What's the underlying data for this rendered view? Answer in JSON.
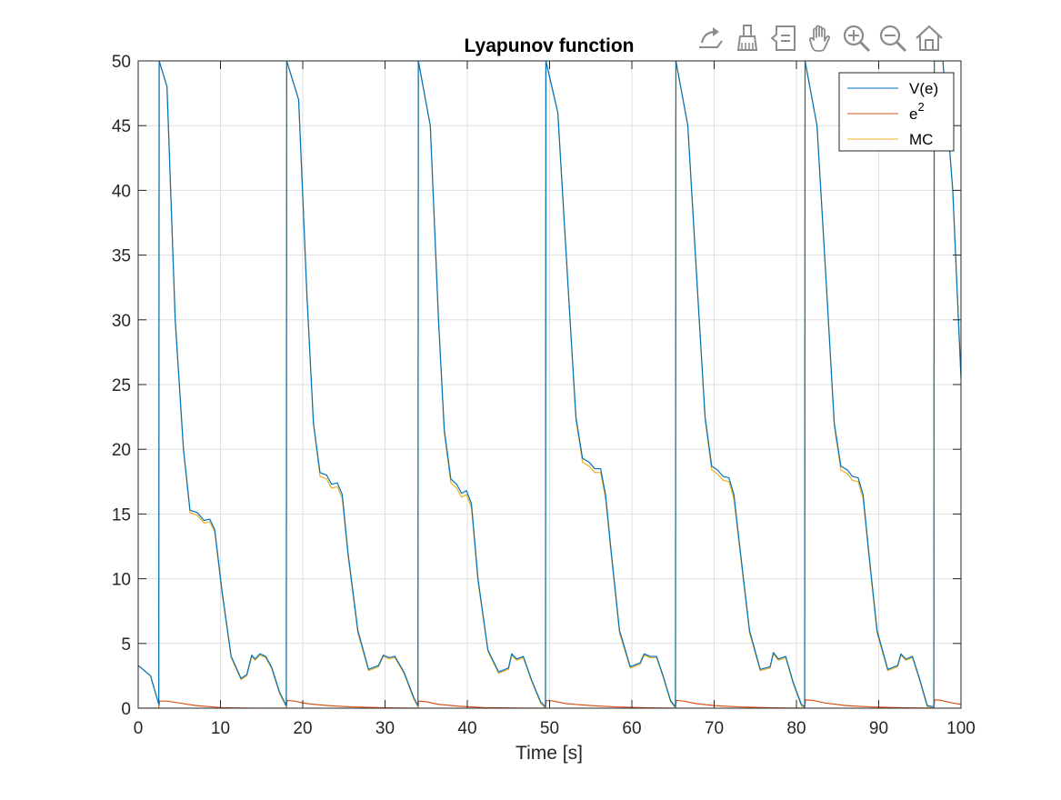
{
  "toolbar": {
    "items": [
      {
        "name": "export-icon"
      },
      {
        "name": "brush-icon"
      },
      {
        "name": "datatip-icon"
      },
      {
        "name": "pan-hand-icon"
      },
      {
        "name": "zoom-in-icon"
      },
      {
        "name": "zoom-out-icon"
      },
      {
        "name": "home-icon"
      }
    ]
  },
  "chart_data": {
    "type": "line",
    "title": "Lyapunov function",
    "xlabel": "Time [s]",
    "ylabel": "",
    "xlim": [
      0,
      100
    ],
    "ylim": [
      0,
      50
    ],
    "grid": true,
    "xticks": [
      0,
      10,
      20,
      30,
      40,
      50,
      60,
      70,
      80,
      90,
      100
    ],
    "yticks": [
      0,
      5,
      10,
      15,
      20,
      25,
      30,
      35,
      40,
      45,
      50
    ],
    "legend": {
      "position": "top-right",
      "entries": [
        {
          "label": "V(e)",
          "color": "#0072BD"
        },
        {
          "label": "e",
          "superscript": "2",
          "color": "#D95319"
        },
        {
          "label": "MC",
          "color": "#EDB120"
        }
      ]
    },
    "series": [
      {
        "name": "V(e)",
        "color": "#0072BD",
        "x": [
          0,
          1.5,
          2.5,
          2.55,
          3.5,
          4.5,
          5.5,
          6.3,
          7.2,
          8,
          8.7,
          9.3,
          10.2,
          11.3,
          12.5,
          13.2,
          13.8,
          14.2,
          14.8,
          15.5,
          16.2,
          17.2,
          18.0,
          18.05,
          19.5,
          20.5,
          21.3,
          22.1,
          22.9,
          23.5,
          24.2,
          24.8,
          25.5,
          26.7,
          28,
          29.2,
          29.8,
          30.5,
          31.2,
          32.3,
          33.5,
          34.0,
          34.05,
          35.5,
          36.5,
          37.2,
          38,
          38.7,
          39.3,
          39.9,
          40.5,
          41.3,
          42.5,
          43.8,
          45,
          45.4,
          46,
          46.8,
          47.8,
          48.9,
          49.5,
          49.55,
          51,
          52.3,
          53.2,
          54,
          54.8,
          55.5,
          56.2,
          56.8,
          57.5,
          58.5,
          59.8,
          61,
          61.5,
          62.2,
          63,
          63.8,
          64.7,
          65.3,
          65.35,
          66.8,
          68,
          68.9,
          69.7,
          70.4,
          71.1,
          71.8,
          72.4,
          73.2,
          74.3,
          75.6,
          76.8,
          77.2,
          77.8,
          78.7,
          79.6,
          80.6,
          81.0,
          81.05,
          82.5,
          83.7,
          84.6,
          85.4,
          86.2,
          86.8,
          87.5,
          88.1,
          88.8,
          89.8,
          91.1,
          92.3,
          92.7,
          93.3,
          94.1,
          95,
          95.9,
          96.7,
          96.75,
          97.8,
          99,
          100
        ],
        "y": [
          3.3,
          2.5,
          0.3,
          50,
          48,
          30,
          20,
          15.3,
          15.1,
          14.5,
          14.6,
          13.8,
          9,
          4,
          2.3,
          2.6,
          4.1,
          3.8,
          4.2,
          4.0,
          3.2,
          1.2,
          0.2,
          50,
          47,
          32,
          22,
          18.2,
          18.0,
          17.3,
          17.4,
          16.5,
          12,
          6,
          3.0,
          3.3,
          4.1,
          3.9,
          4.0,
          2.8,
          0.8,
          0.2,
          50,
          45,
          30,
          21.5,
          17.7,
          17.3,
          16.6,
          16.8,
          15.8,
          10,
          4.5,
          2.8,
          3.1,
          4.2,
          3.8,
          4.0,
          2.2,
          0.5,
          0.1,
          50,
          46,
          32,
          22.5,
          19.3,
          19.0,
          18.5,
          18.5,
          16.5,
          12,
          6,
          3.2,
          3.5,
          4.2,
          4.0,
          4.0,
          2.5,
          0.6,
          0.1,
          50,
          45,
          32,
          22.5,
          18.7,
          18.4,
          17.9,
          17.8,
          16.5,
          12,
          6,
          3.0,
          3.2,
          4.3,
          3.8,
          4.0,
          2.0,
          0.3,
          0.1,
          50,
          45,
          32,
          22,
          18.7,
          18.4,
          17.9,
          17.8,
          16.5,
          12,
          6,
          3.0,
          3.3,
          4.2,
          3.8,
          4.0,
          2.2,
          0.2,
          0.1,
          50,
          50,
          40,
          25.5
        ]
      },
      {
        "name": "e²",
        "color": "#D95319",
        "x": [
          0,
          1.5,
          2.5,
          2.6,
          3.5,
          5,
          7,
          9,
          10,
          12,
          14,
          17,
          18.0,
          18.1,
          19,
          20.5,
          23,
          26,
          30,
          34.0,
          34.1,
          35,
          36.5,
          39,
          42,
          46,
          49.5,
          49.6,
          50.5,
          52,
          55,
          58,
          62,
          65.3,
          65.4,
          66.3,
          67.8,
          70,
          73,
          77,
          81.0,
          81.1,
          82,
          83.5,
          86,
          89,
          93,
          96.7,
          96.8,
          97.6,
          99,
          100
        ],
        "y": [
          0,
          0,
          0,
          0.55,
          0.55,
          0.4,
          0.2,
          0.1,
          0.05,
          0.02,
          0,
          0,
          0,
          0.6,
          0.55,
          0.35,
          0.2,
          0.1,
          0.03,
          0,
          0.55,
          0.5,
          0.3,
          0.15,
          0.05,
          0.01,
          0,
          0.6,
          0.55,
          0.35,
          0.2,
          0.1,
          0.03,
          0,
          0.6,
          0.55,
          0.35,
          0.2,
          0.1,
          0.03,
          0,
          0.65,
          0.6,
          0.4,
          0.2,
          0.1,
          0.03,
          0,
          0.65,
          0.6,
          0.4,
          0.3
        ]
      },
      {
        "name": "MC",
        "color": "#EDB120",
        "x": [
          0,
          1.5,
          2.5,
          2.55,
          3.5,
          4.5,
          5.5,
          6.3,
          7.2,
          8,
          8.7,
          9.3,
          10.2,
          11.3,
          12.5,
          13.2,
          13.8,
          14.2,
          14.8,
          15.5,
          16.2,
          17.2,
          18.0,
          18.05,
          19.5,
          20.5,
          21.3,
          22.1,
          22.9,
          23.5,
          24.2,
          24.8,
          25.5,
          26.7,
          28,
          29.2,
          29.8,
          30.5,
          31.2,
          32.3,
          33.5,
          34.0,
          34.05,
          35.5,
          36.5,
          37.2,
          38,
          38.7,
          39.3,
          39.9,
          40.5,
          41.3,
          42.5,
          43.8,
          45,
          45.4,
          46,
          46.8,
          47.8,
          48.9,
          49.5,
          49.55,
          51,
          52.3,
          53.2,
          54,
          54.8,
          55.5,
          56.2,
          56.8,
          57.5,
          58.5,
          59.8,
          61,
          61.5,
          62.2,
          63,
          63.8,
          64.7,
          65.3,
          65.35,
          66.8,
          68,
          68.9,
          69.7,
          70.4,
          71.1,
          71.8,
          72.4,
          73.2,
          74.3,
          75.6,
          76.8,
          77.2,
          77.8,
          78.7,
          79.6,
          80.6,
          81.0,
          81.05,
          82.5,
          83.7,
          84.6,
          85.4,
          86.2,
          86.8,
          87.5,
          88.1,
          88.8,
          89.8,
          91.1,
          92.3,
          92.7,
          93.3,
          94.1,
          95,
          95.9,
          96.7,
          96.75,
          97.8,
          99,
          100
        ],
        "y": [
          3.3,
          2.5,
          0.3,
          50,
          48,
          30,
          20,
          15.1,
          14.9,
          14.3,
          14.4,
          13.6,
          8.8,
          3.9,
          2.2,
          2.5,
          4.0,
          3.7,
          4.1,
          3.9,
          3.1,
          1.1,
          0.1,
          50,
          47,
          32,
          22,
          17.9,
          17.7,
          17.0,
          17.1,
          16.2,
          11.8,
          5.8,
          2.9,
          3.2,
          4.0,
          3.8,
          3.9,
          2.7,
          0.7,
          0.1,
          50,
          45,
          30,
          21.3,
          17.4,
          17.0,
          16.3,
          16.5,
          15.5,
          9.8,
          4.4,
          2.7,
          3.0,
          4.1,
          3.7,
          3.9,
          2.1,
          0.4,
          0.0,
          50,
          46,
          32,
          22.3,
          19.0,
          18.7,
          18.2,
          18.2,
          16.2,
          11.8,
          5.8,
          3.1,
          3.4,
          4.1,
          3.9,
          3.9,
          2.4,
          0.5,
          0.0,
          50,
          45,
          32,
          22.3,
          18.4,
          18.1,
          17.6,
          17.5,
          16.2,
          11.8,
          5.8,
          2.9,
          3.1,
          4.2,
          3.7,
          3.9,
          1.9,
          0.2,
          0.0,
          50,
          45,
          32,
          21.8,
          18.4,
          18.1,
          17.6,
          17.5,
          16.2,
          11.8,
          5.8,
          2.9,
          3.2,
          4.1,
          3.7,
          3.9,
          2.1,
          0.1,
          0.0,
          50,
          50,
          40,
          25.5
        ]
      }
    ]
  }
}
